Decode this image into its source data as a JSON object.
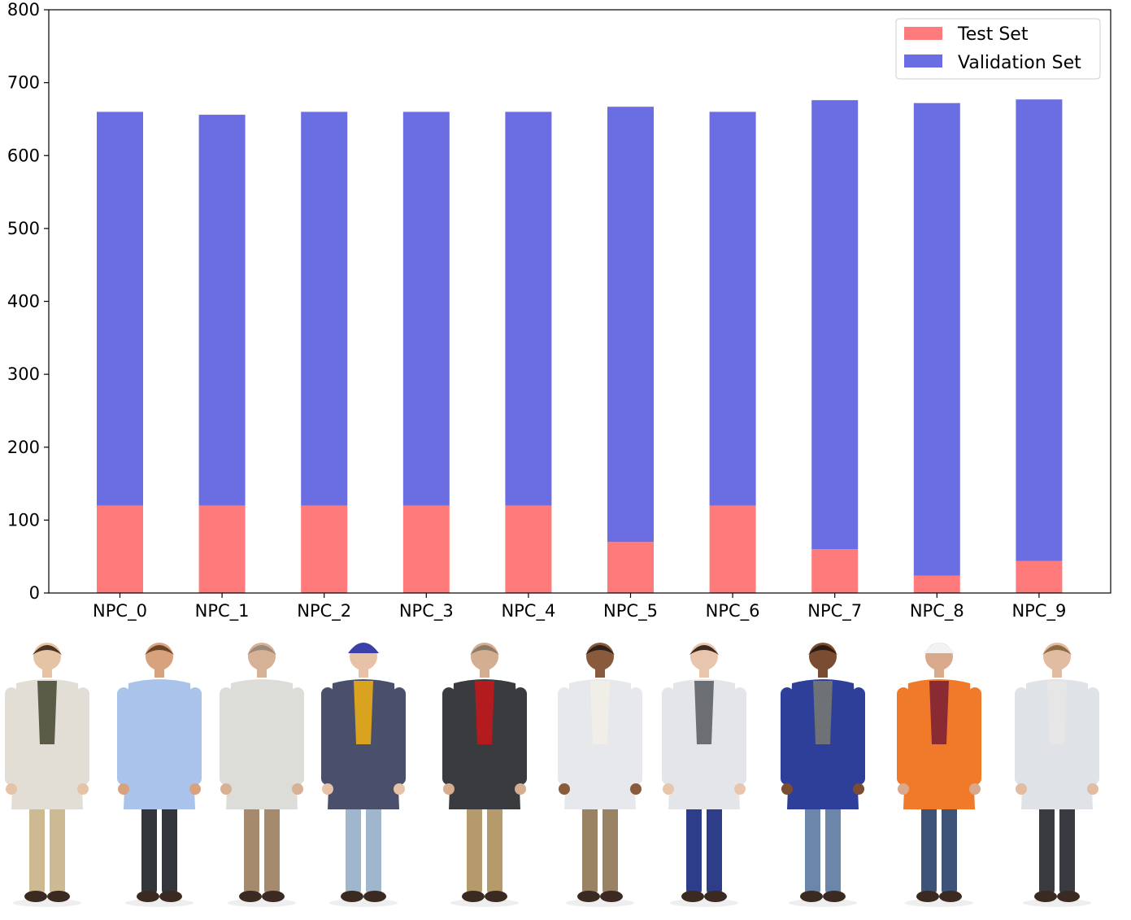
{
  "chart_data": {
    "type": "bar",
    "stacked": true,
    "categories": [
      "NPC_0",
      "NPC_1",
      "NPC_2",
      "NPC_3",
      "NPC_4",
      "NPC_5",
      "NPC_6",
      "NPC_7",
      "NPC_8",
      "NPC_9"
    ],
    "series": [
      {
        "name": "Test Set",
        "color": "#ff7a7a",
        "values": [
          120,
          120,
          120,
          120,
          120,
          70,
          120,
          60,
          24,
          44
        ]
      },
      {
        "name": "Validation Set",
        "color": "#6a6ee2",
        "values": [
          540,
          536,
          540,
          540,
          540,
          597,
          540,
          616,
          648,
          633
        ]
      }
    ],
    "ylim": [
      0,
      800
    ],
    "yticks": [
      "0",
      "100",
      "200",
      "300",
      "400",
      "500",
      "600",
      "700",
      "800"
    ],
    "xlabel": "",
    "ylabel": "",
    "title": "",
    "legend_position": "top-right",
    "grid": false
  },
  "characters": [
    {
      "name": "NPC_0",
      "outfit": "long light-grey coat, khaki trousers",
      "coat": "#e2ded6",
      "pants": "#cdb992",
      "shirt": "#5a5c48",
      "hair": "#4a3322",
      "skin": "#e5c3a5"
    },
    {
      "name": "NPC_1",
      "outfit": "light blue blouse, dark trousers, badge",
      "coat": "#a9c3ea",
      "pants": "#33363b",
      "shirt": "#a9c3ea",
      "hair": "#6b4428",
      "skin": "#d9a27f"
    },
    {
      "name": "NPC_2",
      "outfit": "light shirt, tan trousers, badge",
      "coat": "#dcdcd8",
      "pants": "#a58a6d",
      "shirt": "#dcdcd8",
      "hair": "#9a8a78",
      "skin": "#d7b195"
    },
    {
      "name": "NPC_3",
      "outfit": "beanie, navy hoodie, jeans",
      "coat": "#4a4f6b",
      "pants": "#9fb6cc",
      "shirt": "#d9a21f",
      "hair": "#5a3a24",
      "skin": "#e8c2a6"
    },
    {
      "name": "NPC_4",
      "outfit": "black leather jacket, red shirt, khaki trousers",
      "coat": "#3a3b3f",
      "pants": "#b59a6c",
      "shirt": "#b31b1f",
      "hair": "#8a7a66",
      "skin": "#d5ad90"
    },
    {
      "name": "NPC_5",
      "outfit": "white lab coat, glasses, khaki trousers",
      "coat": "#e6e8ec",
      "pants": "#9a8264",
      "shirt": "#f1eee8",
      "hair": "#2e2018",
      "skin": "#8a5a3c"
    },
    {
      "name": "NPC_6",
      "outfit": "white lab coat, blue leggings",
      "coat": "#e3e5e8",
      "pants": "#2d3d8a",
      "shirt": "#6b6e72",
      "hair": "#3d2a1f",
      "skin": "#e8c6ad"
    },
    {
      "name": "NPC_7",
      "outfit": "blue vest, grey t-shirt, jeans",
      "coat": "#2e3f99",
      "pants": "#6b86a8",
      "shirt": "#6e7176",
      "hair": "#2a1a10",
      "skin": "#7a4c30"
    },
    {
      "name": "NPC_8",
      "outfit": "white hard hat, orange safety vest, jeans",
      "coat": "#f07a2a",
      "pants": "#3e5378",
      "shirt": "#8a2a33",
      "hair": "#ffffff",
      "skin": "#d8a98b"
    },
    {
      "name": "NPC_9",
      "outfit": "white lab coat, dark trousers, badge",
      "coat": "#dfe2e6",
      "pants": "#3a3b40",
      "shirt": "#e6e6e6",
      "hair": "#8b6a44",
      "skin": "#e2bca0"
    }
  ]
}
